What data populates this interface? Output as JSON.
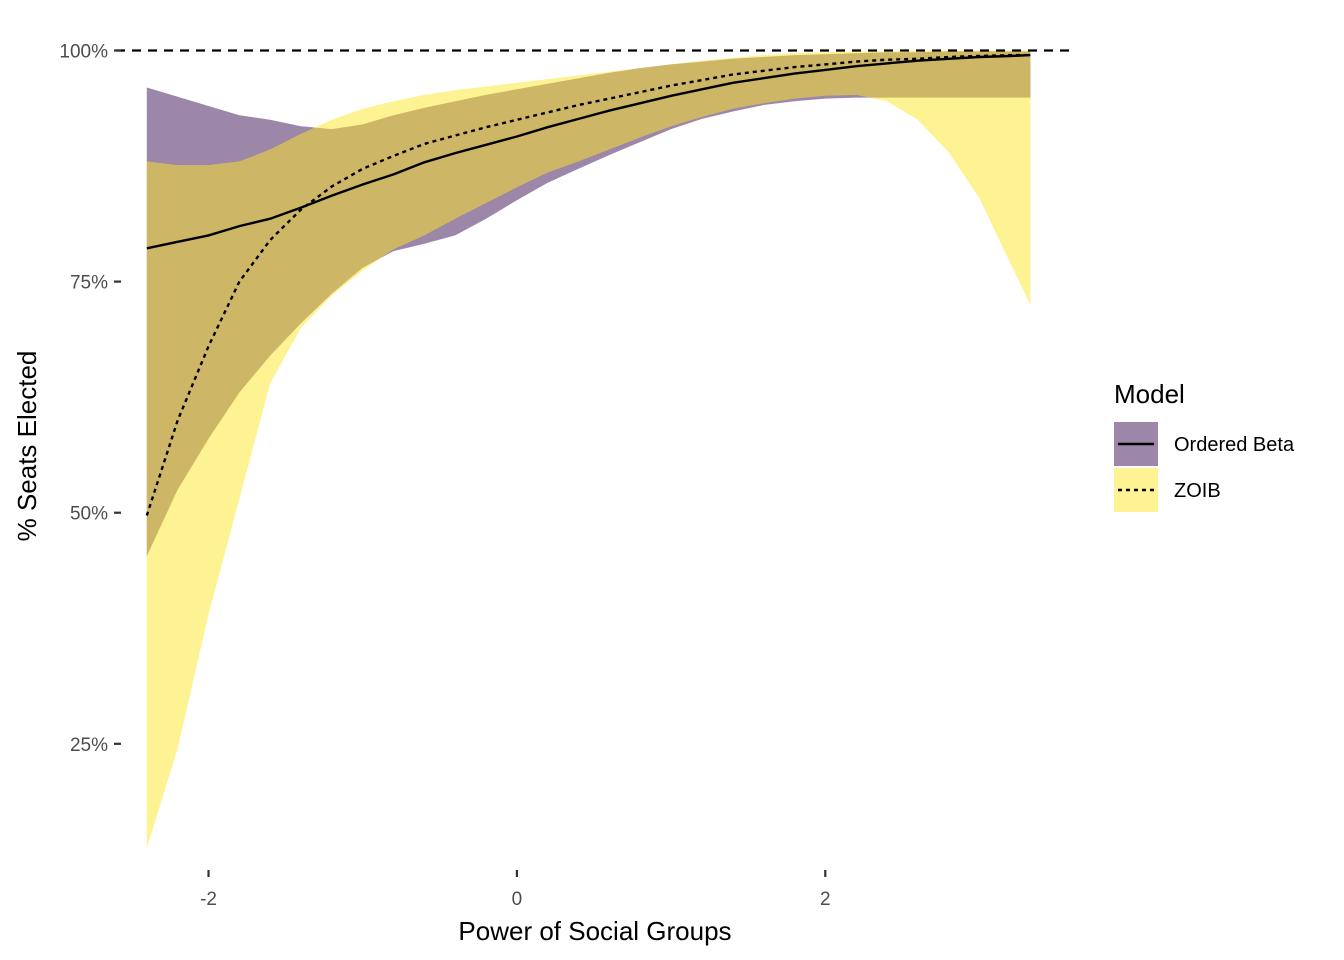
{
  "chart_data": {
    "type": "area",
    "title": "",
    "xlabel": "Power of Social Groups",
    "ylabel": "% Seats Elected",
    "xlim": [
      -2.6,
      3.6
    ],
    "ylim": [
      0.12,
      1.02
    ],
    "x_ticks": [
      -2,
      0,
      2
    ],
    "x_tick_labels": [
      "-2",
      "0",
      "2"
    ],
    "y_ticks": [
      0.25,
      0.5,
      0.75,
      1.0
    ],
    "y_tick_labels": [
      "25%",
      "50%",
      "75%",
      "100%"
    ],
    "reference_line": {
      "y": 1.0,
      "style": "dashed"
    },
    "grid": false,
    "legend": {
      "title": "Model",
      "position": "right",
      "entries": [
        {
          "label": "Ordered Beta",
          "fill": "#3b0f54",
          "line": "solid"
        },
        {
          "label": "ZOIB",
          "fill": "#fde725",
          "line": "dotted"
        }
      ]
    },
    "series": [
      {
        "name": "Ordered Beta",
        "fill_color": "#3b0f54",
        "fill_opacity": 0.5,
        "line_style": "solid",
        "x": [
          -2.4,
          -2.2,
          -2.0,
          -1.8,
          -1.6,
          -1.4,
          -1.2,
          -1.0,
          -0.8,
          -0.6,
          -0.4,
          -0.2,
          0.0,
          0.2,
          0.4,
          0.6,
          0.8,
          1.0,
          1.2,
          1.4,
          1.6,
          1.8,
          2.0,
          2.2,
          2.4,
          2.6,
          2.8,
          3.0,
          3.2,
          3.33
        ],
        "mean": [
          0.786,
          0.793,
          0.8,
          0.81,
          0.818,
          0.83,
          0.843,
          0.855,
          0.866,
          0.879,
          0.889,
          0.898,
          0.907,
          0.917,
          0.926,
          0.935,
          0.943,
          0.951,
          0.958,
          0.965,
          0.97,
          0.975,
          0.979,
          0.983,
          0.986,
          0.989,
          0.991,
          0.993,
          0.994,
          0.995
        ],
        "lower": [
          0.453,
          0.525,
          0.58,
          0.63,
          0.67,
          0.705,
          0.737,
          0.765,
          0.783,
          0.791,
          0.8,
          0.818,
          0.838,
          0.857,
          0.872,
          0.887,
          0.901,
          0.915,
          0.926,
          0.934,
          0.941,
          0.945,
          0.948,
          0.949,
          0.949,
          0.949,
          0.949,
          0.949,
          0.949,
          0.949
        ],
        "upper": [
          0.96,
          0.95,
          0.94,
          0.93,
          0.925,
          0.918,
          0.915,
          0.92,
          0.93,
          0.938,
          0.945,
          0.952,
          0.958,
          0.964,
          0.97,
          0.976,
          0.981,
          0.985,
          0.988,
          0.991,
          0.993,
          0.995,
          0.996,
          0.997,
          0.998,
          0.998,
          0.999,
          0.999,
          0.999,
          0.999
        ]
      },
      {
        "name": "ZOIB",
        "fill_color": "#fde725",
        "fill_opacity": 0.5,
        "line_style": "dotted",
        "x": [
          -2.4,
          -2.2,
          -2.0,
          -1.8,
          -1.6,
          -1.4,
          -1.2,
          -1.0,
          -0.8,
          -0.6,
          -0.4,
          -0.2,
          0.0,
          0.2,
          0.4,
          0.6,
          0.8,
          1.0,
          1.2,
          1.4,
          1.6,
          1.8,
          2.0,
          2.2,
          2.4,
          2.6,
          2.8,
          3.0,
          3.2,
          3.33
        ],
        "mean": [
          0.497,
          0.6,
          0.68,
          0.75,
          0.795,
          0.828,
          0.853,
          0.872,
          0.886,
          0.899,
          0.908,
          0.917,
          0.925,
          0.933,
          0.941,
          0.948,
          0.955,
          0.962,
          0.968,
          0.974,
          0.978,
          0.982,
          0.985,
          0.988,
          0.99,
          0.991,
          0.993,
          0.994,
          0.995,
          0.995
        ],
        "lower": [
          0.137,
          0.245,
          0.39,
          0.515,
          0.64,
          0.7,
          0.735,
          0.762,
          0.785,
          0.8,
          0.818,
          0.835,
          0.852,
          0.868,
          0.88,
          0.893,
          0.906,
          0.918,
          0.928,
          0.937,
          0.943,
          0.948,
          0.951,
          0.952,
          0.945,
          0.925,
          0.89,
          0.84,
          0.77,
          0.725
        ],
        "upper": [
          0.88,
          0.876,
          0.876,
          0.88,
          0.893,
          0.91,
          0.925,
          0.937,
          0.945,
          0.952,
          0.957,
          0.961,
          0.965,
          0.969,
          0.973,
          0.977,
          0.981,
          0.985,
          0.989,
          0.992,
          0.995,
          0.997,
          0.998,
          0.999,
          0.999,
          1.0,
          1.0,
          1.0,
          1.0,
          1.0
        ]
      }
    ]
  }
}
